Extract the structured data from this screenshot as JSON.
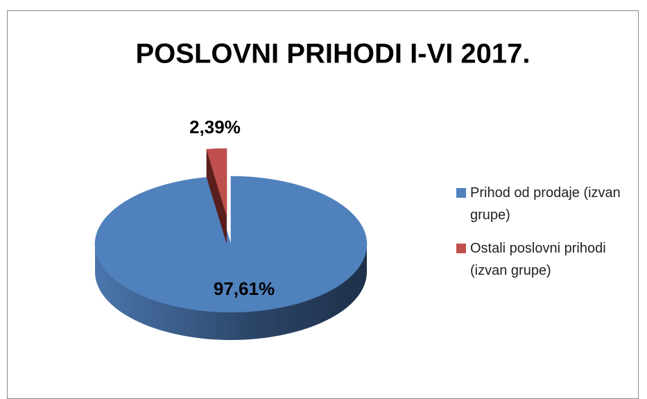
{
  "chart_data": {
    "type": "pie",
    "title": "POSLOVNI PRIHODI I-VI 2017.",
    "categories": [
      "Prihod od prodaje (izvan grupe)",
      "Ostali poslovni prihodi (izvan grupe)"
    ],
    "values": [
      97.61,
      2.39
    ],
    "value_labels": [
      "97,61%",
      "2,39%"
    ],
    "colors": [
      "#4f81bd",
      "#c0504d"
    ],
    "legend": "right"
  }
}
